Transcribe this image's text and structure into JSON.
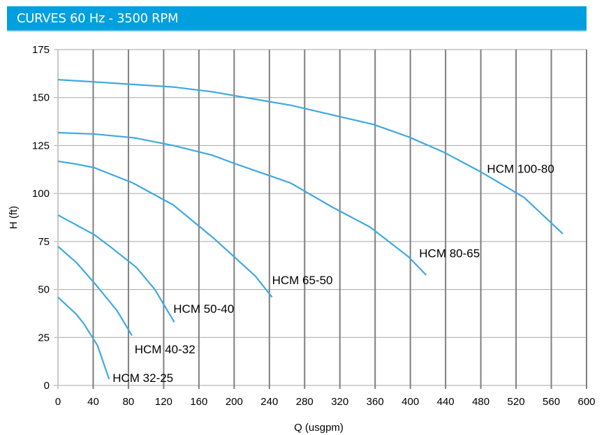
{
  "header": {
    "title": "CURVES 60 Hz - 3500 RPM"
  },
  "chart_data": {
    "type": "line",
    "title": "",
    "xlabel": "Q (usgpm)",
    "ylabel": "H (ft)",
    "xlim": [
      0,
      600
    ],
    "ylim": [
      0,
      175
    ],
    "xticks": [
      0,
      40,
      80,
      120,
      160,
      200,
      240,
      280,
      320,
      360,
      400,
      440,
      480,
      520,
      560,
      600
    ],
    "yticks": [
      0,
      25,
      50,
      75,
      100,
      125,
      150,
      175
    ],
    "grid": true,
    "line_color": "#3fa9e0",
    "series": [
      {
        "name": "HCM 100-80",
        "x": [
          0,
          40,
          80,
          131,
          175,
          200,
          264,
          311,
          358,
          398,
          438,
          481,
          529,
          573
        ],
        "y": [
          159.3,
          158.2,
          157,
          155.5,
          153,
          151,
          146,
          141,
          136,
          129.5,
          121.5,
          111,
          98,
          79
        ]
      },
      {
        "name": "HCM 80-65",
        "x": [
          0,
          41,
          87,
          131,
          175,
          200,
          264,
          311,
          354,
          398,
          418
        ],
        "y": [
          131.7,
          131,
          129,
          125,
          120,
          115.7,
          105.5,
          93,
          82.6,
          67,
          57.5
        ]
      },
      {
        "name": "HCM 65-50",
        "x": [
          0,
          21,
          41,
          85,
          131,
          176,
          200,
          224,
          243
        ],
        "y": [
          116.8,
          115.3,
          113.5,
          105.5,
          94,
          77,
          67,
          57,
          46
        ]
      },
      {
        "name": "HCM 50-40",
        "x": [
          0,
          41,
          61,
          89,
          110,
          132
        ],
        "y": [
          88.8,
          78.6,
          71.7,
          61.5,
          50,
          33
        ]
      },
      {
        "name": "HCM 40-32",
        "x": [
          0,
          21,
          42,
          67,
          84
        ],
        "y": [
          72.4,
          64,
          53,
          39,
          26
        ]
      },
      {
        "name": "HCM 32-25",
        "x": [
          0,
          21,
          29,
          40,
          45,
          58
        ],
        "y": [
          46,
          37,
          32.4,
          24.4,
          20.7,
          3.3
        ]
      }
    ]
  }
}
